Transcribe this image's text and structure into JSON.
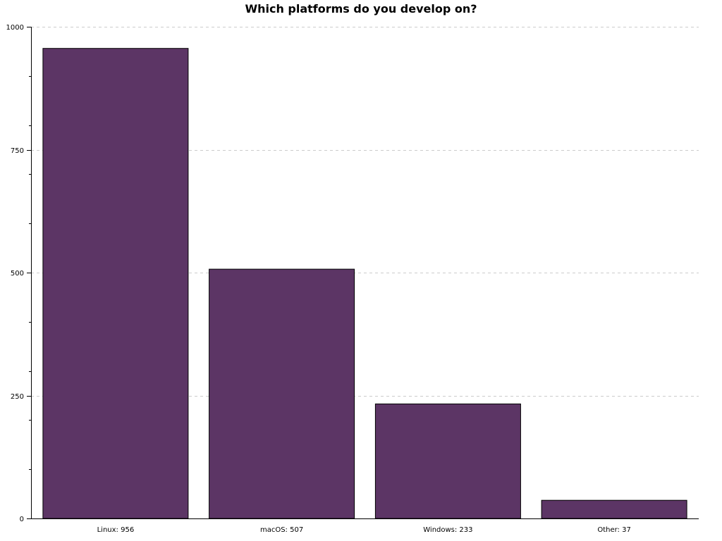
{
  "chart_data": {
    "type": "bar",
    "title": "Which platforms do you develop on?",
    "categories": [
      "Linux",
      "macOS",
      "Windows",
      "Other"
    ],
    "category_labels": [
      "Linux: 956",
      "macOS: 507",
      "Windows: 233",
      "Other: 37"
    ],
    "values": [
      956,
      507,
      233,
      37
    ],
    "ylim": [
      0,
      1000
    ],
    "y_ticks": [
      0,
      250,
      500,
      750,
      1000
    ],
    "y_tick_labels": [
      "0",
      "250",
      "500",
      "750",
      "1000"
    ],
    "y_minor_step": 100,
    "grid": "horizontal dashed",
    "legend": "none",
    "bar_color": "#5c3565",
    "bar_edge_color": "#000000",
    "grid_color": "#cccccc"
  }
}
